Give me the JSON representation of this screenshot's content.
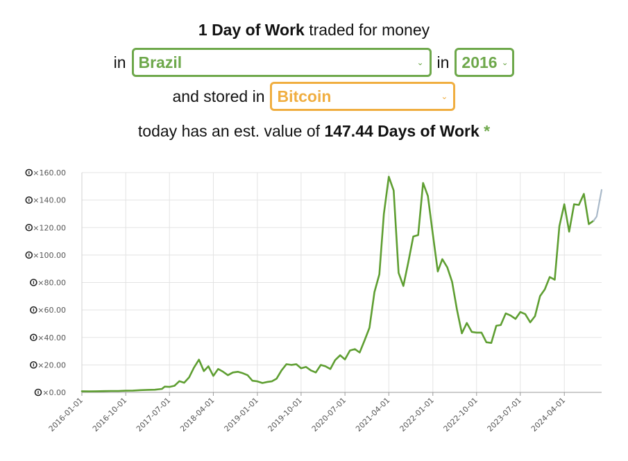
{
  "colors": {
    "accent_green": "#6ea84b",
    "accent_orange": "#f0ae40",
    "line_green": "#5e9e31",
    "line_projection": "#a9b9c9"
  },
  "header": {
    "strong": "1 Day of Work",
    "rest": " traded for money",
    "in_word": "in",
    "in_word_2": "in",
    "stored_text": "and stored in",
    "today_text": "today has an est. value of ",
    "value_text": "147.44 Days of Work",
    "asterisk": "*"
  },
  "selects": {
    "country": "Brazil",
    "year": "2016",
    "asset": "Bitcoin"
  },
  "chart_data": {
    "type": "line",
    "title": "",
    "xlabel": "",
    "ylabel": "",
    "y_tick_prefix": "×",
    "ylim": [
      0,
      160
    ],
    "y_ticks": [
      "×0.00",
      "×20.00",
      "×40.00",
      "×60.00",
      "×80.00",
      "×100.00",
      "×120.00",
      "×140.00",
      "×160.00"
    ],
    "x_ticks": [
      "2016-01-01",
      "2016-10-01",
      "2017-07-01",
      "2018-04-01",
      "2019-01-01",
      "2019-10-01",
      "2020-07-01",
      "2021-04-01",
      "2022-01-01",
      "2022-10-01",
      "2023-07-01",
      "2024-04-01"
    ],
    "grid": true,
    "series": [
      {
        "color": "#5e9e31",
        "points": [
          [
            "2016-01-01",
            0.8
          ],
          [
            "2016-02-15",
            0.7
          ],
          [
            "2016-04-01",
            0.8
          ],
          [
            "2016-05-15",
            0.9
          ],
          [
            "2016-07-01",
            1.0
          ],
          [
            "2016-08-15",
            1.0
          ],
          [
            "2016-10-01",
            1.2
          ],
          [
            "2016-11-15",
            1.3
          ],
          [
            "2017-01-01",
            1.6
          ],
          [
            "2017-02-15",
            1.8
          ],
          [
            "2017-04-01",
            1.9
          ],
          [
            "2017-05-15",
            2.5
          ],
          [
            "2017-06-01",
            4.2
          ],
          [
            "2017-07-01",
            4.0
          ],
          [
            "2017-08-01",
            4.8
          ],
          [
            "2017-09-01",
            8.2
          ],
          [
            "2017-10-01",
            7.0
          ],
          [
            "2017-11-01",
            11.0
          ],
          [
            "2017-12-01",
            18.0
          ],
          [
            "2018-01-01",
            23.8
          ],
          [
            "2018-02-01",
            15.5
          ],
          [
            "2018-03-01",
            19.0
          ],
          [
            "2018-04-01",
            12.0
          ],
          [
            "2018-05-01",
            17.0
          ],
          [
            "2018-06-01",
            15.0
          ],
          [
            "2018-07-01",
            12.5
          ],
          [
            "2018-08-01",
            14.5
          ],
          [
            "2018-09-01",
            15.0
          ],
          [
            "2018-10-01",
            14.0
          ],
          [
            "2018-11-01",
            12.5
          ],
          [
            "2018-12-01",
            8.5
          ],
          [
            "2019-01-01",
            8.0
          ],
          [
            "2019-02-01",
            6.8
          ],
          [
            "2019-03-01",
            7.5
          ],
          [
            "2019-04-01",
            8.0
          ],
          [
            "2019-05-01",
            10.0
          ],
          [
            "2019-06-01",
            16.0
          ],
          [
            "2019-07-01",
            20.5
          ],
          [
            "2019-08-01",
            20.0
          ],
          [
            "2019-09-01",
            20.5
          ],
          [
            "2019-10-01",
            17.5
          ],
          [
            "2019-11-01",
            18.5
          ],
          [
            "2019-12-01",
            16.0
          ],
          [
            "2020-01-01",
            14.5
          ],
          [
            "2020-02-01",
            20.0
          ],
          [
            "2020-03-01",
            19.0
          ],
          [
            "2020-04-01",
            17.0
          ],
          [
            "2020-05-01",
            23.5
          ],
          [
            "2020-06-01",
            27.0
          ],
          [
            "2020-07-01",
            24.0
          ],
          [
            "2020-08-01",
            30.5
          ],
          [
            "2020-09-01",
            31.5
          ],
          [
            "2020-10-01",
            29.0
          ],
          [
            "2020-11-01",
            38.0
          ],
          [
            "2020-12-01",
            47.0
          ],
          [
            "2021-01-01",
            73.0
          ],
          [
            "2021-02-01",
            86.0
          ],
          [
            "2021-03-01",
            130.0
          ],
          [
            "2021-04-01",
            157.0
          ],
          [
            "2021-05-01",
            147.0
          ],
          [
            "2021-06-01",
            87.0
          ],
          [
            "2021-07-01",
            77.5
          ],
          [
            "2021-08-01",
            95.0
          ],
          [
            "2021-09-01",
            113.5
          ],
          [
            "2021-10-01",
            114.5
          ],
          [
            "2021-11-01",
            152.5
          ],
          [
            "2021-12-01",
            143.0
          ],
          [
            "2022-01-01",
            115.0
          ],
          [
            "2022-02-01",
            88.0
          ],
          [
            "2022-03-01",
            97.0
          ],
          [
            "2022-04-01",
            91.0
          ],
          [
            "2022-05-01",
            80.5
          ],
          [
            "2022-06-01",
            60.0
          ],
          [
            "2022-07-01",
            43.0
          ],
          [
            "2022-08-01",
            50.5
          ],
          [
            "2022-09-01",
            44.0
          ],
          [
            "2022-10-01",
            43.5
          ],
          [
            "2022-11-01",
            43.5
          ],
          [
            "2022-12-01",
            36.5
          ],
          [
            "2023-01-01",
            36.0
          ],
          [
            "2023-02-01",
            48.5
          ],
          [
            "2023-03-01",
            49.0
          ],
          [
            "2023-04-01",
            57.5
          ],
          [
            "2023-05-01",
            56.0
          ],
          [
            "2023-06-01",
            53.5
          ],
          [
            "2023-07-01",
            58.5
          ],
          [
            "2023-08-01",
            57.0
          ],
          [
            "2023-09-01",
            51.0
          ],
          [
            "2023-10-01",
            55.5
          ],
          [
            "2023-11-01",
            70.0
          ],
          [
            "2023-12-01",
            75.0
          ],
          [
            "2024-01-01",
            84.0
          ],
          [
            "2024-02-01",
            82.0
          ],
          [
            "2024-03-01",
            121.0
          ],
          [
            "2024-04-01",
            137.0
          ],
          [
            "2024-05-01",
            117.0
          ],
          [
            "2024-06-01",
            137.0
          ],
          [
            "2024-07-01",
            136.5
          ],
          [
            "2024-08-01",
            144.5
          ],
          [
            "2024-09-01",
            122.5
          ],
          [
            "2024-10-01",
            125.0
          ]
        ]
      },
      {
        "color": "#a9b9c9",
        "points": [
          [
            "2024-10-01",
            125.0
          ],
          [
            "2024-10-20",
            128.0
          ],
          [
            "2024-11-20",
            147.44
          ]
        ]
      }
    ]
  }
}
